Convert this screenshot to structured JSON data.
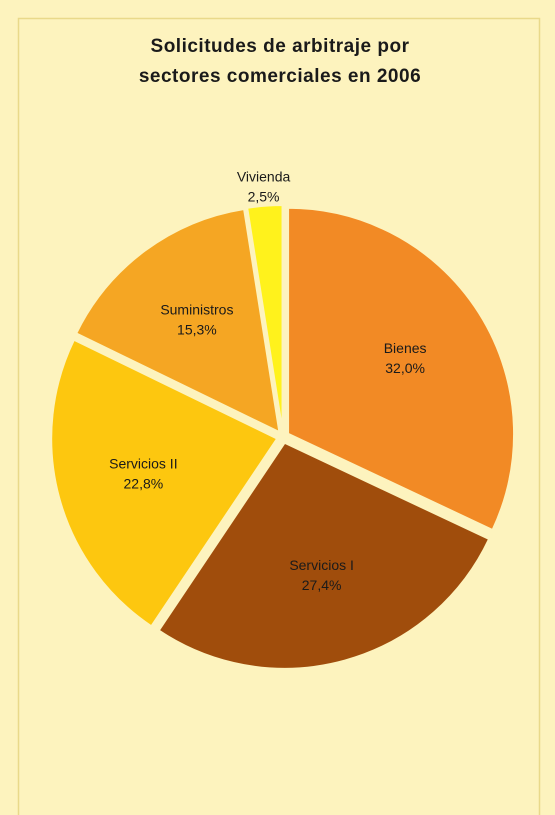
{
  "chart_data": {
    "type": "pie",
    "title_lines": [
      "Solicitudes de arbitraje por",
      "sectores comerciales en 2006"
    ],
    "categories": [
      "Bienes",
      "Servicios I",
      "Servicios II",
      "Suministros",
      "Vivienda"
    ],
    "values": [
      32.0,
      27.4,
      22.8,
      15.3,
      2.5
    ],
    "value_labels": [
      "32,0%",
      "27,4%",
      "22,8%",
      "15,3%",
      "2,5%"
    ],
    "colors": [
      "#f28a25",
      "#a04d0c",
      "#fdc70f",
      "#f5a623",
      "#fff21c"
    ]
  }
}
